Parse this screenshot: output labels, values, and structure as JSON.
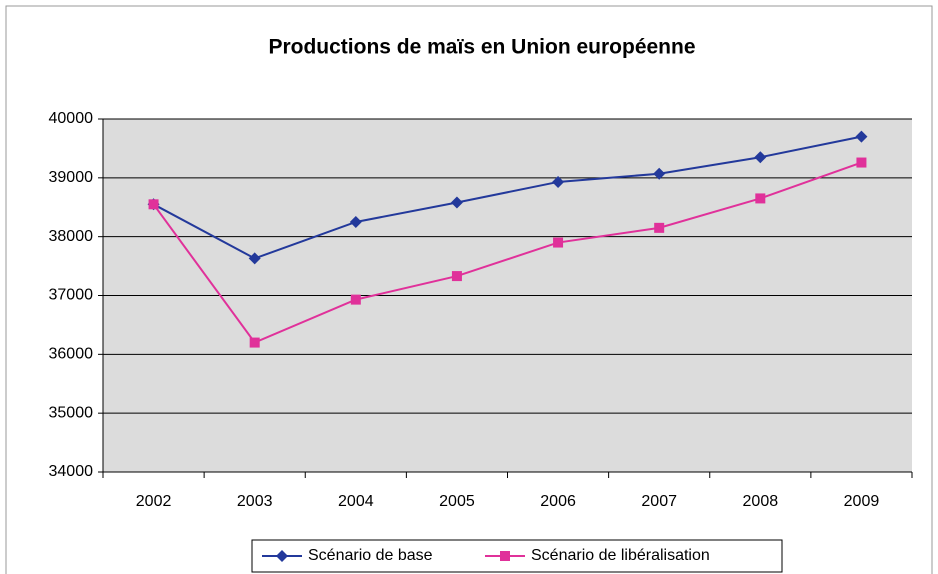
{
  "chart_data": {
    "type": "line",
    "title": "Productions de maïs en Union européenne",
    "categories": [
      "2002",
      "2003",
      "2004",
      "2005",
      "2006",
      "2007",
      "2008",
      "2009"
    ],
    "series": [
      {
        "name": "Scénario de base",
        "color": "#23399b",
        "marker": "diamond",
        "values": [
          38550,
          37630,
          38250,
          38580,
          38930,
          39070,
          39350,
          39700
        ]
      },
      {
        "name": "Scénario de libéralisation",
        "color": "#e0319a",
        "marker": "square",
        "values": [
          38550,
          36200,
          36930,
          37330,
          37900,
          38150,
          38650,
          39260
        ]
      }
    ],
    "ylim": [
      34000,
      40000
    ],
    "yticks": [
      34000,
      35000,
      36000,
      37000,
      38000,
      39000,
      40000
    ],
    "grid": true,
    "legend": "bottom"
  }
}
